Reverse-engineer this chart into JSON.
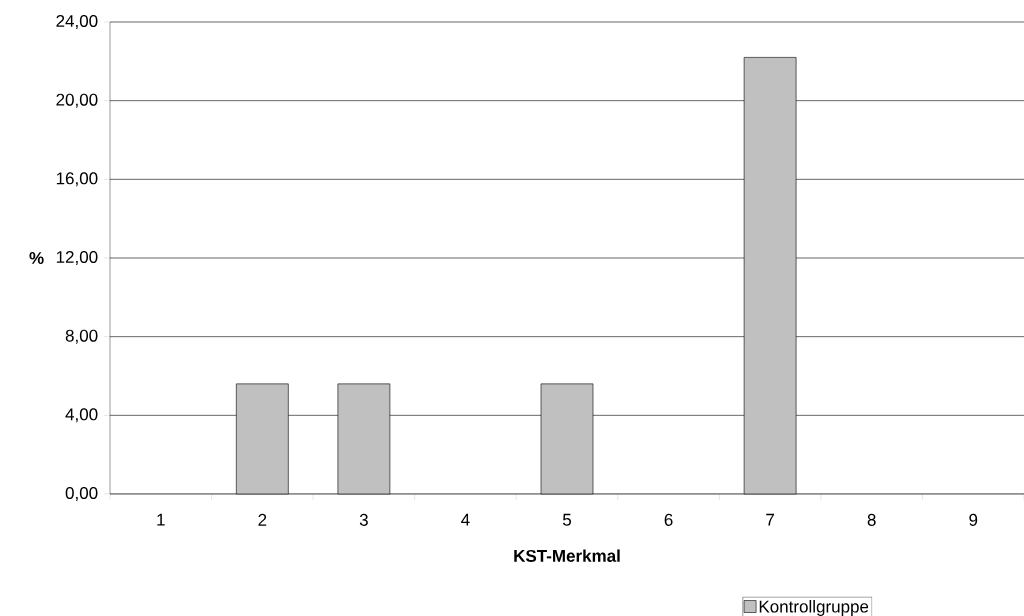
{
  "chart_data": {
    "type": "bar",
    "xlabel": "KST-Merkmal",
    "ylabel": "%",
    "categories": [
      "1",
      "2",
      "3",
      "4",
      "5",
      "6",
      "7",
      "8",
      "9"
    ],
    "series": [
      {
        "name": "Kontrollgruppe",
        "color": "#c0c0c0",
        "values": [
          0,
          5.6,
          5.6,
          0,
          5.6,
          0,
          22.2,
          0,
          0
        ]
      }
    ],
    "ylim": [
      0,
      24
    ],
    "yticks": [
      {
        "value": 0,
        "label": "0,00"
      },
      {
        "value": 4,
        "label": "4,00"
      },
      {
        "value": 8,
        "label": "8,00"
      },
      {
        "value": 12,
        "label": "12,00"
      },
      {
        "value": 16,
        "label": "16,00"
      },
      {
        "value": 20,
        "label": "20,00"
      },
      {
        "value": 24,
        "label": "24,00"
      }
    ],
    "grid": "y",
    "legend": "bottom"
  }
}
